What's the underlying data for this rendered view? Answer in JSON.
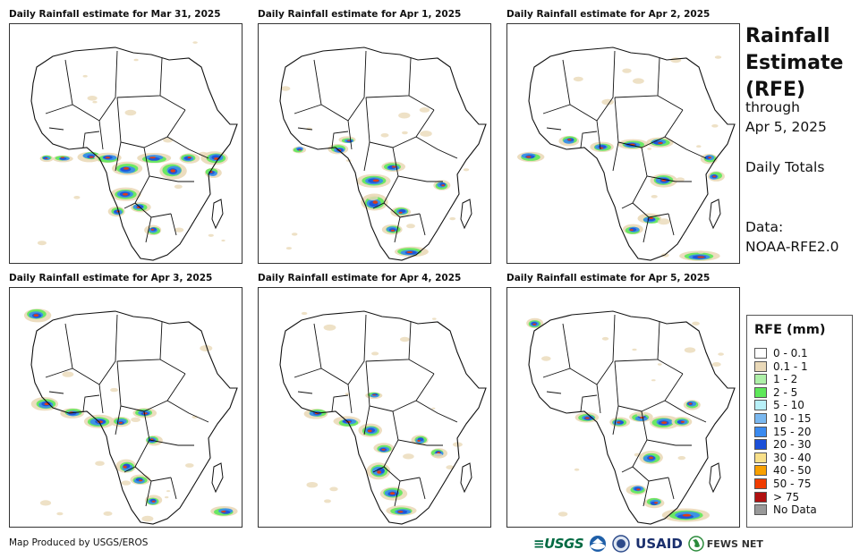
{
  "panels": [
    {
      "title": "Daily Rainfall estimate for Mar 31, 2025"
    },
    {
      "title": "Daily Rainfall estimate for Apr 1, 2025"
    },
    {
      "title": "Daily Rainfall estimate for Apr 2, 2025"
    },
    {
      "title": "Daily Rainfall estimate for Apr 3, 2025"
    },
    {
      "title": "Daily Rainfall estimate for Apr 4, 2025"
    },
    {
      "title": "Daily Rainfall estimate for Apr 5, 2025"
    }
  ],
  "side": {
    "title_lines": [
      "Rainfall",
      "Estimate",
      "(RFE)"
    ],
    "through": "through",
    "date": "Apr 5, 2025",
    "totals": "Daily Totals",
    "data_label": "Data:",
    "data_source": "NOAA-RFE2.0"
  },
  "legend": {
    "title": "RFE (mm)",
    "items": [
      {
        "label": "0 - 0.1",
        "color": "#ffffff"
      },
      {
        "label": "0.1 - 1",
        "color": "#ead9b8"
      },
      {
        "label": "1 - 2",
        "color": "#aef0a8"
      },
      {
        "label": "2 - 5",
        "color": "#5ee85a"
      },
      {
        "label": "5 - 10",
        "color": "#b8f0f8"
      },
      {
        "label": "10 - 15",
        "color": "#7ab8f0"
      },
      {
        "label": "15 - 20",
        "color": "#3a8af0"
      },
      {
        "label": "20 - 30",
        "color": "#1c50d8"
      },
      {
        "label": "30 - 40",
        "color": "#f8e08a"
      },
      {
        "label": "40 - 50",
        "color": "#f8a000"
      },
      {
        "label": "50 - 75",
        "color": "#f03c00"
      },
      {
        "label": "> 75",
        "color": "#b01010"
      },
      {
        "label": "No Data",
        "color": "#999999"
      }
    ]
  },
  "credit": "Map Produced by USGS/EROS",
  "logos": {
    "usgs": "≡USGS",
    "usaid": "USAID",
    "fews": "FEWS NET"
  }
}
